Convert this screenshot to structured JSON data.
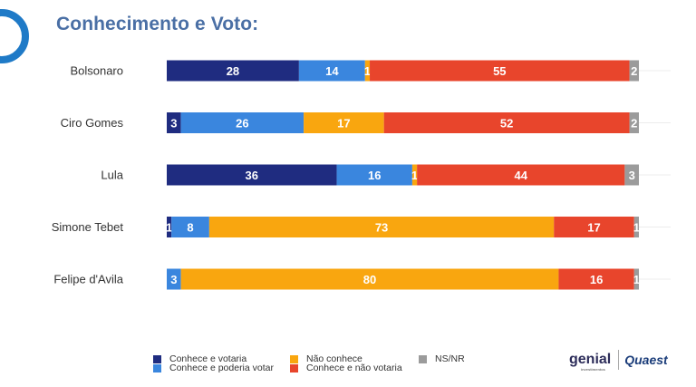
{
  "title": "Conhecimento e Voto:",
  "chart_data": {
    "type": "bar",
    "orientation": "horizontal",
    "stacked": true,
    "categories": [
      "Bolsonaro",
      "Ciro Gomes",
      "Lula",
      "Simone Tebet",
      "Felipe d'Avila"
    ],
    "series": [
      {
        "name": "Conhece e votaria",
        "color": "#1f2c80",
        "values": [
          28,
          3,
          36,
          1,
          0
        ]
      },
      {
        "name": "Conhece e poderia votar",
        "color": "#3a86de",
        "values": [
          14,
          26,
          16,
          8,
          3
        ]
      },
      {
        "name": "Não conhece",
        "color": "#f9a60f",
        "values": [
          1,
          17,
          1,
          73,
          80
        ]
      },
      {
        "name": "Conhece e não votaria",
        "color": "#e8452c",
        "values": [
          55,
          52,
          44,
          17,
          16
        ]
      },
      {
        "name": "NS/NR",
        "color": "#9b9b9b",
        "values": [
          2,
          2,
          3,
          1,
          1
        ]
      }
    ],
    "xlim": [
      0,
      100
    ],
    "grid": false,
    "legend_position": "bottom"
  },
  "logos": {
    "genial": "genial",
    "genial_sub": "investimentos",
    "quaest": "Quaest"
  }
}
